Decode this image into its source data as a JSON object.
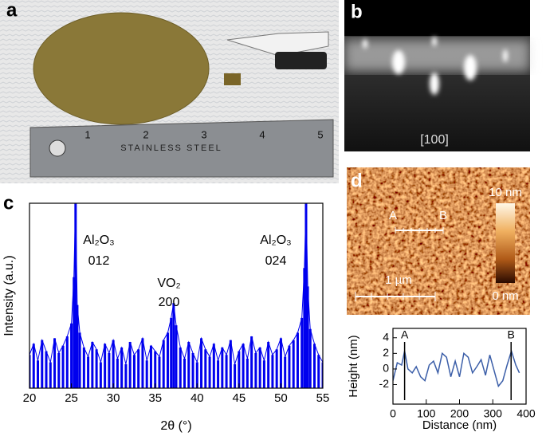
{
  "panels": {
    "a": {
      "label": "a",
      "ruler_text": "STAINLESS STEEL",
      "ruler_numbers": [
        1,
        2,
        3,
        4,
        5
      ]
    },
    "b": {
      "label": "b",
      "direction": "[100]"
    },
    "d": {
      "label": "d",
      "point_a": "A",
      "point_b": "B",
      "scale_bar": "1 µm",
      "color_max": "10 nm",
      "color_min": "0 nm"
    }
  },
  "chart_data": [
    {
      "type": "line",
      "label": "c",
      "filled": true,
      "color": "#0000ee",
      "x": [
        20,
        20.5,
        21,
        21.5,
        22,
        22.5,
        23,
        23.5,
        24,
        24.5,
        25,
        25.3,
        25.5,
        25.7,
        26,
        26.5,
        27,
        27.5,
        28,
        28.5,
        29,
        29.5,
        30,
        30.5,
        31,
        31.5,
        32,
        32.5,
        33,
        33.5,
        34,
        34.5,
        35,
        35.5,
        36,
        36.5,
        36.9,
        37.2,
        37.5,
        38,
        38.5,
        39,
        39.5,
        40,
        40.5,
        41,
        41.5,
        42,
        42.5,
        43,
        43.5,
        44,
        44.5,
        45,
        45.5,
        46,
        46.5,
        47,
        47.5,
        48,
        48.5,
        49,
        49.5,
        50,
        50.5,
        51,
        51.5,
        52,
        52.5,
        52.8,
        53,
        53.2,
        53.5,
        54,
        54.5,
        55
      ],
      "values": [
        18,
        24,
        15,
        26,
        20,
        14,
        27,
        19,
        23,
        28,
        35,
        60,
        100,
        45,
        30,
        22,
        17,
        25,
        21,
        14,
        24,
        19,
        26,
        16,
        22,
        13,
        25,
        18,
        21,
        27,
        15,
        23,
        20,
        17,
        26,
        30,
        38,
        46,
        34,
        22,
        16,
        25,
        19,
        14,
        27,
        21,
        17,
        24,
        15,
        22,
        18,
        26,
        13,
        20,
        24,
        16,
        28,
        19,
        22,
        15,
        25,
        18,
        21,
        27,
        17,
        23,
        26,
        30,
        38,
        65,
        100,
        55,
        32,
        24,
        18,
        14
      ],
      "xlim": [
        20,
        55
      ],
      "xticks": [
        20,
        25,
        30,
        35,
        40,
        45,
        50,
        55
      ],
      "ylim": [
        0,
        100
      ],
      "xlabel": "2θ (°)",
      "ylabel": "Intensity (a.u.)",
      "annotations": [
        "Al₂O₃",
        "012",
        "VO₂",
        "200",
        "Al₂O₃",
        "024"
      ]
    },
    {
      "type": "line",
      "filled": false,
      "color": "#3b5ea8",
      "x": [
        0,
        13,
        26,
        35,
        45,
        58,
        70,
        83,
        96,
        109,
        122,
        135,
        148,
        161,
        174,
        187,
        200,
        213,
        226,
        239,
        252,
        265,
        278,
        291,
        304,
        317,
        330,
        343,
        356,
        369,
        380
      ],
      "values": [
        -1.5,
        0.8,
        0.5,
        2.3,
        0,
        -0.5,
        0.3,
        -1,
        -1.5,
        0.5,
        1,
        -0.5,
        2,
        1.5,
        -1,
        1,
        -1,
        2,
        1.5,
        -0.5,
        0.3,
        1.2,
        -0.8,
        1.8,
        -0.2,
        -2.2,
        -1.5,
        0.5,
        2.3,
        0.5,
        -0.5
      ],
      "xlim": [
        0,
        400
      ],
      "xticks": [
        0,
        100,
        200,
        300,
        400
      ],
      "ylim": [
        -4.5,
        5.2
      ],
      "yticks": [
        -2,
        0,
        2,
        4
      ],
      "xlabel": "Distance (nm)",
      "ylabel": "Height (nm)",
      "markers": [
        {
          "label": "A",
          "x": 35
        },
        {
          "label": "B",
          "x": 355
        }
      ]
    }
  ]
}
